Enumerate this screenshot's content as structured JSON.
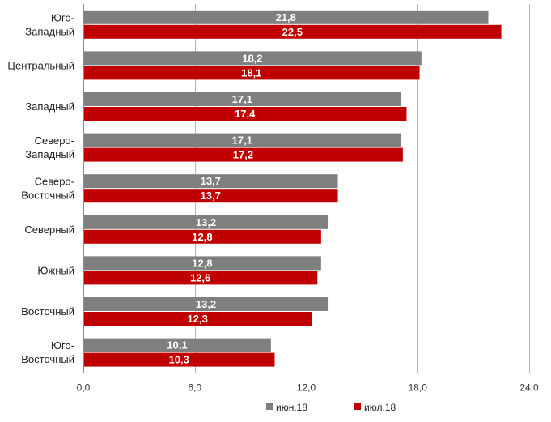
{
  "chart_data": {
    "type": "bar",
    "orientation": "horizontal",
    "categories": [
      "Юго-\nЗападный",
      "Центральный",
      "Западный",
      "Северо-\nЗападный",
      "Северо-\nВосточный",
      "Северный",
      "Южный",
      "Восточный",
      "Юго-\nВосточный"
    ],
    "series": [
      {
        "name": "июн.18",
        "color": "#7f7f7f",
        "values": [
          21.8,
          18.2,
          17.1,
          17.1,
          13.7,
          13.2,
          12.8,
          13.2,
          10.1
        ]
      },
      {
        "name": "июл.18",
        "color": "#c00000",
        "values": [
          22.5,
          18.1,
          17.4,
          17.2,
          13.7,
          12.8,
          12.6,
          12.3,
          10.3
        ]
      }
    ],
    "data_labels": [
      [
        "21,8",
        "18,2",
        "17,1",
        "17,1",
        "13,7",
        "13,2",
        "12,8",
        "13,2",
        "10,1"
      ],
      [
        "22,5",
        "18,1",
        "17,4",
        "17,2",
        "13,7",
        "12,8",
        "12,6",
        "12,3",
        "10,3"
      ]
    ],
    "xlim": [
      0,
      24
    ],
    "xticks": [
      0,
      6,
      12,
      18,
      24
    ],
    "xtick_labels": [
      "0,0",
      "6,0",
      "12,0",
      "18,0",
      "24,0"
    ],
    "grid": true,
    "legend_position": "bottom",
    "title": "",
    "xlabel": "",
    "ylabel": ""
  }
}
